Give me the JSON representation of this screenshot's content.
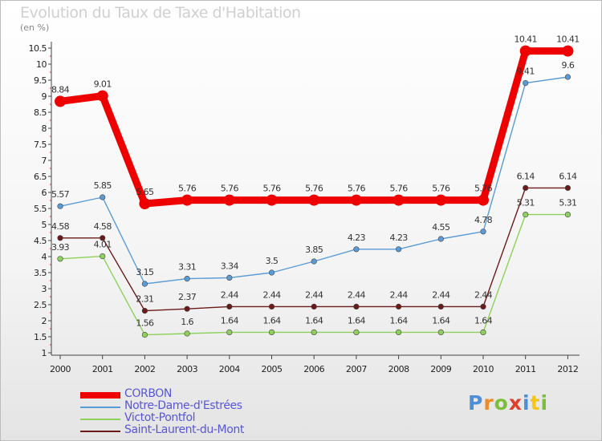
{
  "header": {
    "title": "Evolution du Taux de Taxe d'Habitation",
    "unit": "(en %)"
  },
  "chart_data": {
    "type": "line",
    "title": "Evolution du Taux de Taxe d'Habitation",
    "ylabel": "(en %)",
    "xlabel": "",
    "ylim": [
      1,
      10.5
    ],
    "yticks": [
      "1",
      "1.5",
      "2",
      "2.5",
      "3",
      "3.5",
      "4",
      "4.5",
      "5",
      "5.5",
      "6",
      "6.5",
      "7",
      "7.5",
      "8",
      "8.5",
      "9",
      "9.5",
      "10",
      "10.5"
    ],
    "categories": [
      "2000",
      "2001",
      "2002",
      "2003",
      "2004",
      "2005",
      "2006",
      "2007",
      "2008",
      "2009",
      "2010",
      "2011",
      "2012"
    ],
    "series": [
      {
        "name": "CORBON",
        "color": "#ee0000",
        "values": [
          8.84,
          9.01,
          5.65,
          5.76,
          5.76,
          5.76,
          5.76,
          5.76,
          5.76,
          5.76,
          5.76,
          10.41,
          10.41
        ],
        "labels": [
          "8.84",
          "9.01",
          "5.65",
          "5.76",
          "5.76",
          "5.76",
          "5.76",
          "5.76",
          "5.76",
          "5.76",
          "5.76",
          "10.41",
          "10.41"
        ]
      },
      {
        "name": "Notre-Dame-d'Estrées",
        "color": "#5b9bd5",
        "values": [
          5.57,
          5.85,
          3.15,
          3.31,
          3.34,
          3.5,
          3.85,
          4.23,
          4.23,
          4.55,
          4.78,
          9.41,
          9.6
        ],
        "labels": [
          "5.57",
          "5.85",
          "3.15",
          "3.31",
          "3.34",
          "3.5",
          "3.85",
          "4.23",
          "4.23",
          "4.55",
          "4.78",
          "9.41",
          "9.6"
        ]
      },
      {
        "name": "Victot-Pontfol",
        "color": "#8ed15a",
        "values": [
          3.93,
          4.01,
          1.56,
          1.6,
          1.64,
          1.64,
          1.64,
          1.64,
          1.64,
          1.64,
          1.64,
          5.31,
          5.31
        ],
        "labels": [
          "3.93",
          "4.01",
          "1.56",
          "1.6",
          "1.64",
          "1.64",
          "1.64",
          "1.64",
          "1.64",
          "1.64",
          "1.64",
          "5.31",
          "5.31"
        ]
      },
      {
        "name": "Saint-Laurent-du-Mont",
        "color": "#6b1a1a",
        "values": [
          4.58,
          4.58,
          2.31,
          2.37,
          2.44,
          2.44,
          2.44,
          2.44,
          2.44,
          2.44,
          2.44,
          6.14,
          6.14
        ],
        "labels": [
          "4.58",
          "4.58",
          "2.31",
          "2.37",
          "2.44",
          "2.44",
          "2.44",
          "2.44",
          "2.44",
          "2.44",
          "2.44",
          "6.14",
          "6.14"
        ]
      }
    ],
    "legend": [
      "CORBON",
      "Notre-Dame-d'Estrées",
      "Victot-Pontfol",
      "Saint-Laurent-du-Mont"
    ]
  },
  "logo": {
    "letters": [
      "P",
      "r",
      "o",
      "x",
      "i",
      "t",
      "i"
    ],
    "colors": [
      "#4a8fd8",
      "#f08a24",
      "#7bbf3a",
      "#e0402a",
      "#4a8fd8",
      "#f5c518",
      "#7bbf3a"
    ]
  }
}
